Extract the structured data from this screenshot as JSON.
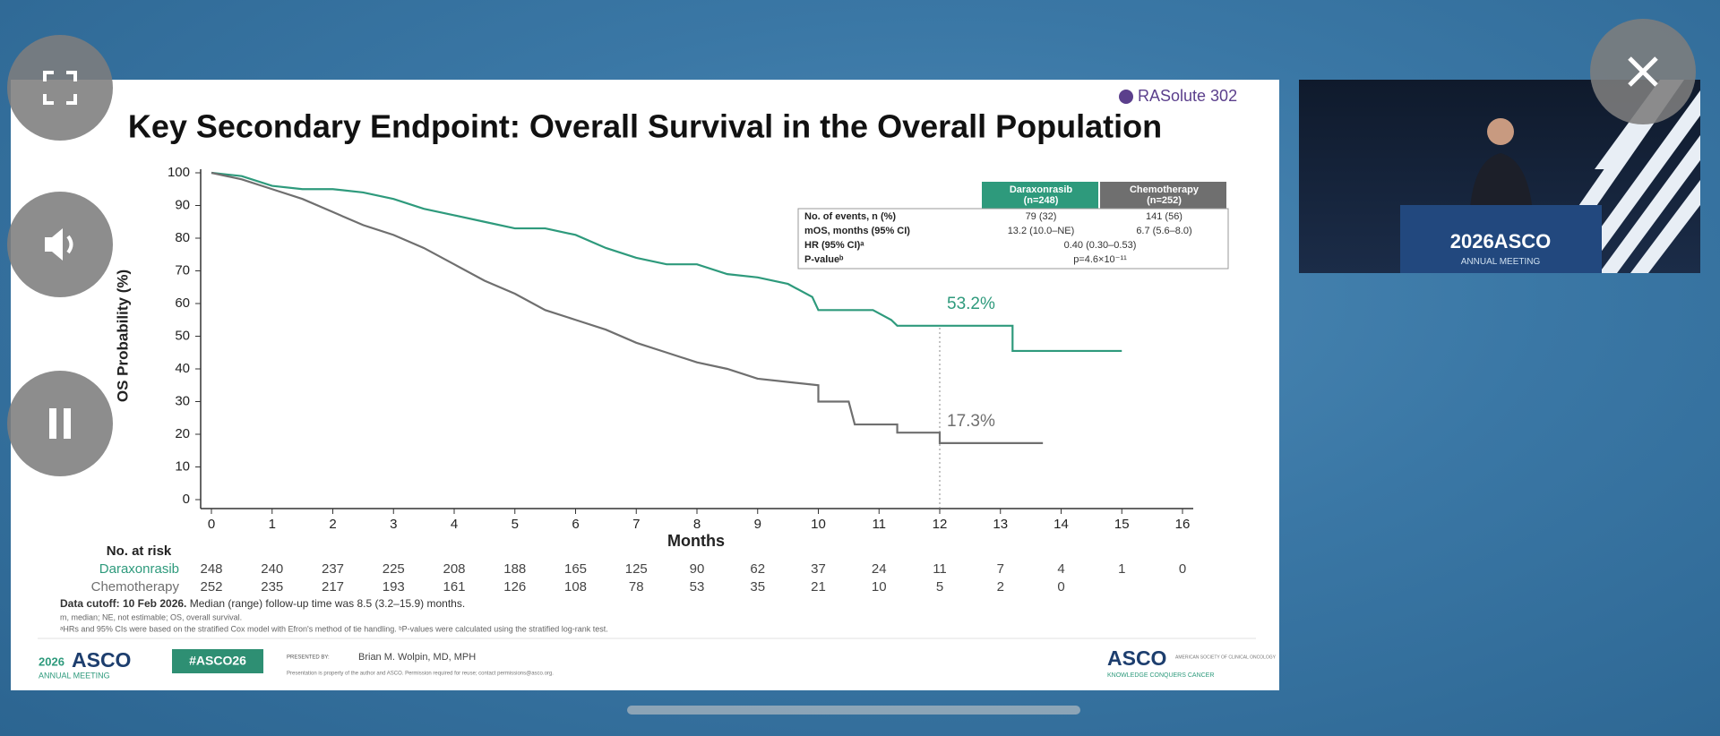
{
  "slide": {
    "logo": "RASolute 302",
    "title": "Key Secondary Endpoint: Overall Survival in the Overall Population",
    "table": {
      "header": [
        [
          "Daraxonrasib",
          "(n=248)"
        ],
        [
          "Chemotherapy",
          "(n=252)"
        ]
      ],
      "rows": [
        {
          "label": "No. of events, n (%)",
          "cells": [
            "79 (32)",
            "141 (56)"
          ]
        },
        {
          "label": "mOS, months (95% CI)",
          "cells": [
            "13.2 (10.0–NE)",
            "6.7 (5.6–8.0)"
          ]
        },
        {
          "label": "HR (95% CI)ᵃ",
          "cells": [
            "0.40 (0.30–0.53)"
          ]
        },
        {
          "label": "P-valueᵇ",
          "cells": [
            "p=4.6×10⁻¹¹"
          ]
        }
      ]
    },
    "risk_table": {
      "title": "No. at risk",
      "rows": [
        [
          "248",
          "240",
          "237",
          "225",
          "208",
          "188",
          "165",
          "125",
          "90",
          "62",
          "37",
          "24",
          "11",
          "7",
          "4",
          "1",
          "0"
        ],
        [
          "252",
          "235",
          "217",
          "193",
          "161",
          "126",
          "108",
          "78",
          "53",
          "35",
          "21",
          "10",
          "5",
          "2",
          "0"
        ]
      ]
    },
    "footnotes": {
      "cutoff_label": "Data cutoff: 10 Feb 2026.",
      "cutoff_text": " Median (range) follow-up time was 8.5 (3.2–15.9) months.",
      "abbreviations": "m, median; NE, not estimable; OS, overall survival.",
      "methods": "ᵃHRs and 95% CIs were based on the stratified Cox model with Efron's method of tie handling. ᵇP-values were calculated using the stratified log-rank test."
    },
    "footer": {
      "meeting_year": "2026",
      "meeting_name": "ASCO",
      "meeting_sub": "ANNUAL MEETING",
      "hashtag": "#ASCO26",
      "presented_by": "PRESENTED BY:",
      "presenter": "Brian M. Wolpin, MD, MPH",
      "disclaimer": "Presentation is property of the author and ASCO. Permission required for reuse; contact permissions@asco.org.",
      "society": "ASCO",
      "society_name": "AMERICAN SOCIETY OF CLINICAL ONCOLOGY",
      "tagline": "KNOWLEDGE CONQUERS CANCER"
    }
  },
  "video": {
    "podium": "2026ASCO",
    "podium_sub": "ANNUAL MEETING"
  },
  "chart_data": {
    "type": "line",
    "xlabel": "Months",
    "ylabel": "OS Probability (%)",
    "xlim": [
      0,
      16
    ],
    "xticks": [
      0,
      1,
      2,
      3,
      4,
      5,
      6,
      7,
      8,
      9,
      10,
      11,
      12,
      13,
      14,
      15,
      16
    ],
    "ylim": [
      0,
      100
    ],
    "yticks": [
      0,
      10,
      20,
      30,
      40,
      50,
      60,
      70,
      80,
      90,
      100
    ],
    "series": [
      {
        "name": "Daraxonrasib",
        "color": "#2e9a7c",
        "x": [
          0,
          0.5,
          1,
          1.5,
          2,
          2.5,
          3,
          3.5,
          4,
          4.5,
          5,
          5.5,
          6,
          6.5,
          7,
          7.5,
          8,
          8.5,
          9,
          9.5,
          9.9,
          10,
          10.9,
          11.2,
          11.3,
          12,
          13.2,
          13.2,
          15
        ],
        "values": [
          100,
          99,
          96,
          95,
          95,
          94,
          92,
          89,
          87,
          85,
          83,
          83,
          81,
          77,
          74,
          72,
          72,
          69,
          68,
          66,
          62,
          58,
          58,
          55,
          53.2,
          53.2,
          53.2,
          45.5,
          45.5
        ]
      },
      {
        "name": "Chemotherapy",
        "color": "#6f6f6f",
        "x": [
          0,
          0.5,
          1,
          1.5,
          2,
          2.5,
          3,
          3.5,
          4,
          4.5,
          5,
          5.5,
          6,
          6.5,
          7,
          7.5,
          8,
          8.5,
          9,
          9.5,
          10,
          10,
          10.5,
          10.6,
          11.3,
          11.3,
          12,
          12,
          13.7
        ],
        "values": [
          100,
          98,
          95,
          92,
          88,
          84,
          81,
          77,
          72,
          67,
          63,
          58,
          55,
          52,
          48,
          45,
          42,
          40,
          37,
          36,
          35,
          30,
          30,
          23,
          23,
          20.5,
          20.5,
          17.3,
          17.3
        ]
      }
    ],
    "annotations": [
      {
        "text": "53.2%",
        "x": 12,
        "y": 53.2
      },
      {
        "text": "17.3%",
        "x": 12,
        "y": 17.3
      }
    ]
  }
}
